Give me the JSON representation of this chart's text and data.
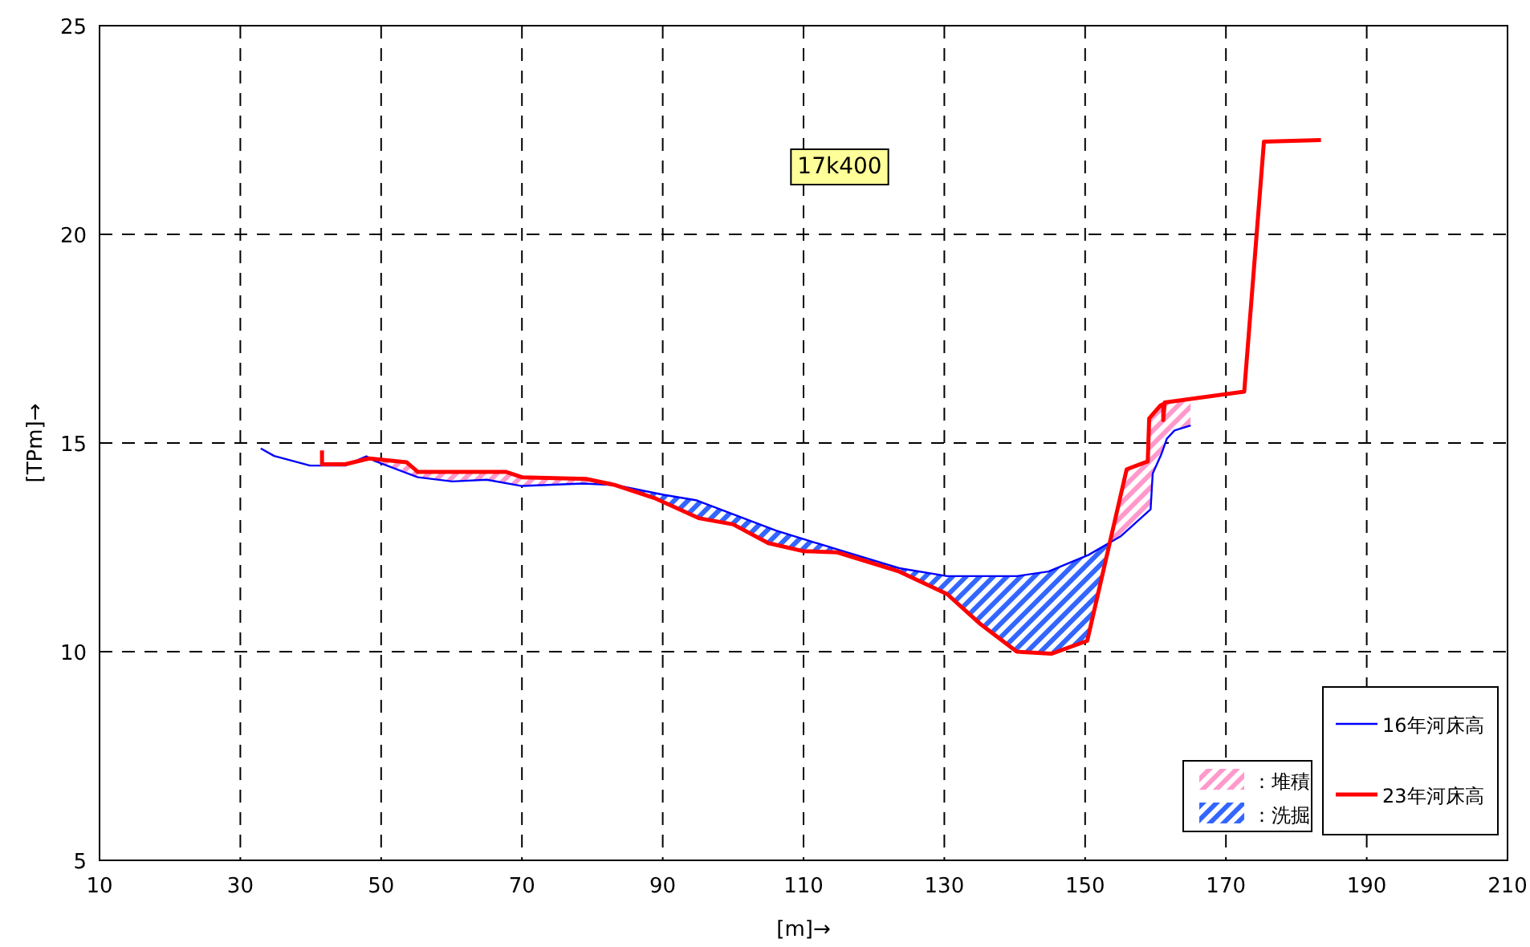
{
  "chart_data": {
    "type": "line",
    "xlabel": "[m]→",
    "ylabel": "[TPm]→",
    "xlim": [
      10,
      210
    ],
    "xticks": [
      10,
      30,
      50,
      70,
      90,
      110,
      130,
      150,
      170,
      190,
      210
    ],
    "ylim": [
      5,
      25
    ],
    "yticks": [
      5,
      10,
      15,
      20,
      25
    ],
    "grid": true,
    "legend": "bottom right",
    "annotations": [
      "17k400"
    ],
    "series": [
      {
        "name": "16年河床高",
        "type": "line",
        "color": "#0000ff",
        "x": [
          32.9,
          34.8,
          39.9,
          44.9,
          47.9,
          49.1,
          55.2,
          60.1,
          65.0,
          70.0,
          78.7,
          83.3,
          90.1,
          94.7,
          106.1,
          115.2,
          123.6,
          130.4,
          140.3,
          144.8,
          150.5,
          155.1,
          159.3,
          159.6,
          160.8,
          161.6,
          162.7,
          165.0
        ],
        "values": [
          14.87,
          14.69,
          14.46,
          14.46,
          14.68,
          14.57,
          14.18,
          14.08,
          14.12,
          13.97,
          14.03,
          13.99,
          13.76,
          13.63,
          12.9,
          12.43,
          12.0,
          11.81,
          11.81,
          11.92,
          12.32,
          12.77,
          13.41,
          14.27,
          14.72,
          15.1,
          15.3,
          15.42
        ]
      },
      {
        "name": "23年河床高",
        "type": "line",
        "color": "#ff0000",
        "x": [
          41.6,
          41.6,
          44.9,
          48.3,
          53.6,
          55.2,
          67.7,
          70.0,
          79.1,
          83.3,
          89.0,
          95.1,
          100.0,
          105.0,
          109.9,
          114.8,
          123.6,
          130.4,
          135.0,
          140.3,
          145.2,
          150.3,
          155.9,
          158.9,
          159.1,
          160.7,
          161.1,
          161.1,
          161.3,
          172.6,
          175.4,
          183.5
        ],
        "values": [
          14.82,
          14.49,
          14.49,
          14.63,
          14.54,
          14.31,
          14.31,
          14.18,
          14.14,
          13.99,
          13.67,
          13.2,
          13.05,
          12.6,
          12.41,
          12.38,
          11.92,
          11.38,
          10.68,
          10.0,
          9.95,
          10.26,
          14.37,
          14.56,
          15.59,
          15.9,
          15.93,
          15.55,
          15.97,
          16.23,
          22.22,
          22.26
        ]
      },
      {
        "name": "：堆積",
        "type": "area",
        "color": "#ff99cc"
      },
      {
        "name": "：洗掘",
        "type": "area",
        "color": "#3366ff"
      }
    ]
  }
}
